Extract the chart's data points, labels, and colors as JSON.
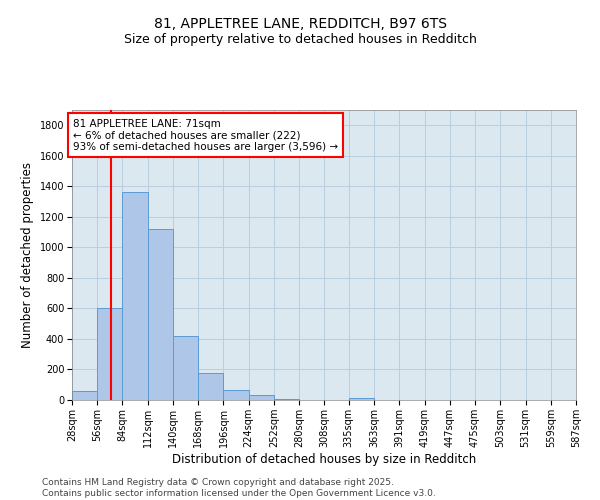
{
  "title1": "81, APPLETREE LANE, REDDITCH, B97 6TS",
  "title2": "Size of property relative to detached houses in Redditch",
  "xlabel": "Distribution of detached houses by size in Redditch",
  "ylabel": "Number of detached properties",
  "bin_edges": [
    28,
    56,
    84,
    112,
    140,
    168,
    196,
    224,
    252,
    280,
    308,
    335,
    363,
    391,
    419,
    447,
    475,
    503,
    531,
    559,
    587
  ],
  "bin_labels": [
    "28sqm",
    "56sqm",
    "84sqm",
    "112sqm",
    "140sqm",
    "168sqm",
    "196sqm",
    "224sqm",
    "252sqm",
    "280sqm",
    "308sqm",
    "335sqm",
    "363sqm",
    "391sqm",
    "419sqm",
    "447sqm",
    "475sqm",
    "503sqm",
    "531sqm",
    "559sqm",
    "587sqm"
  ],
  "bar_heights": [
    60,
    600,
    1360,
    1120,
    420,
    175,
    65,
    35,
    5,
    0,
    0,
    15,
    0,
    0,
    0,
    0,
    0,
    0,
    0,
    0
  ],
  "bar_color": "#aec6e8",
  "bar_edge_color": "#5b9bd5",
  "vline_x": 71,
  "vline_color": "red",
  "annotation_line1": "81 APPLETREE LANE: 71sqm",
  "annotation_line2": "← 6% of detached houses are smaller (222)",
  "annotation_line3": "93% of semi-detached houses are larger (3,596) →",
  "annotation_box_color": "white",
  "annotation_box_edge_color": "red",
  "ylim": [
    0,
    1900
  ],
  "yticks": [
    0,
    200,
    400,
    600,
    800,
    1000,
    1200,
    1400,
    1600,
    1800
  ],
  "grid_color": "#b8cfe0",
  "background_color": "#dce8f0",
  "footer_text": "Contains HM Land Registry data © Crown copyright and database right 2025.\nContains public sector information licensed under the Open Government Licence v3.0.",
  "title_fontsize": 10,
  "subtitle_fontsize": 9,
  "tick_fontsize": 7,
  "label_fontsize": 8.5,
  "annotation_fontsize": 7.5,
  "footer_fontsize": 6.5
}
